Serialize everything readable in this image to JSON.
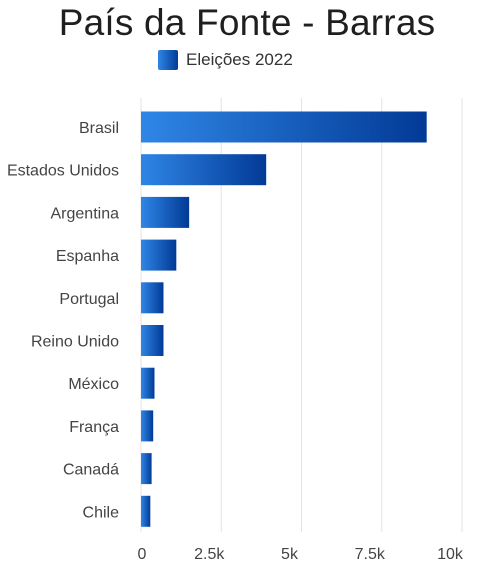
{
  "chart_data": {
    "type": "bar",
    "orientation": "horizontal",
    "title": "País da Fonte - Barras",
    "categories": [
      "Brasil",
      "Estados Unidos",
      "Argentina",
      "Espanha",
      "Portugal",
      "Reino Unido",
      "México",
      "França",
      "Canadá",
      "Chile"
    ],
    "series": [
      {
        "name": "Eleições 2022",
        "values": [
          8900,
          3900,
          1500,
          1100,
          700,
          700,
          420,
          380,
          330,
          290
        ]
      }
    ],
    "xlabel": "",
    "ylabel": "",
    "xlim": [
      0,
      10000
    ],
    "x_ticks": [
      0,
      2500,
      5000,
      7500,
      10000
    ],
    "x_tick_labels": [
      "0",
      "2.5k",
      "5k",
      "7.5k",
      "10k"
    ],
    "grid": "vertical",
    "legend_position": "top",
    "colors": {
      "bar_light": "#2f86e6",
      "bar_dark": "#023a96",
      "grid": "#e3e3e3",
      "text": "#444444",
      "title": "#1f1f1f"
    }
  }
}
